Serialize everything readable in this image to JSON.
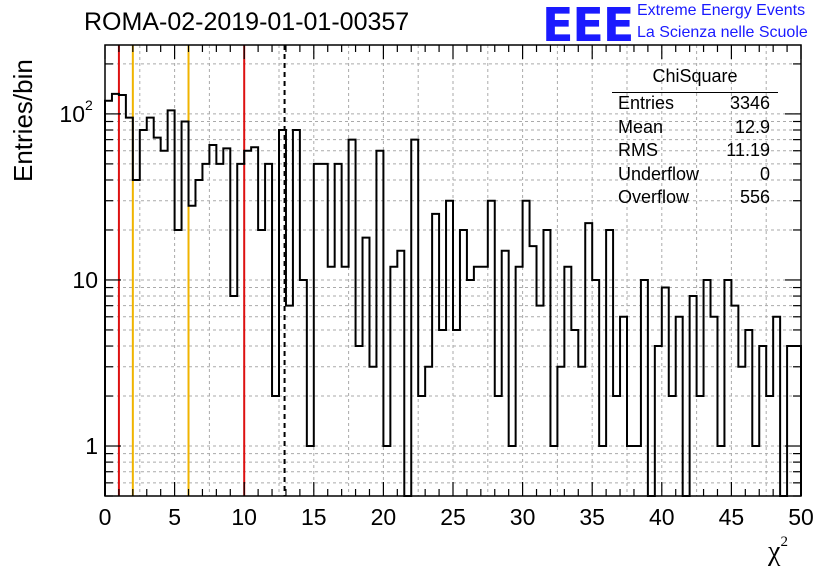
{
  "header": {
    "title": "ROMA-02-2019-01-01-00357",
    "logo_text": "EEE",
    "logo_line1": "Extreme Energy Events",
    "logo_line2": "La Scienza nelle Scuole"
  },
  "stats_box": {
    "title": "ChiSquare",
    "rows": [
      {
        "label": "Entries",
        "value": "3346"
      },
      {
        "label": "Mean",
        "value": "12.9"
      },
      {
        "label": "RMS",
        "value": "11.19"
      },
      {
        "label": "Underflow",
        "value": "0"
      },
      {
        "label": "Overflow",
        "value": "556"
      }
    ]
  },
  "colors": {
    "histogram": "#000000",
    "red_line": "#dd1111",
    "yellow_line": "#f0b400",
    "grid": "#aaaaaa",
    "logo": "#1a1aff"
  },
  "chart_data": {
    "type": "histogram",
    "title": "ROMA-02-2019-01-01-00357",
    "xlabel": "χ",
    "xlabel_sup": "2",
    "ylabel": "Entries/bin",
    "xlim": [
      0,
      50
    ],
    "ylim": [
      0.5,
      260
    ],
    "yscale": "log",
    "grid": true,
    "bin_width": 0.5,
    "x_ticks": [
      "0",
      "5",
      "10",
      "15",
      "20",
      "25",
      "30",
      "35",
      "40",
      "45",
      "50"
    ],
    "y_ticks": [
      {
        "value": 1,
        "label": "1"
      },
      {
        "value": 10,
        "label": "10"
      },
      {
        "value": 100,
        "label": "10",
        "sup": "2"
      }
    ],
    "counts": [
      120,
      132,
      130,
      95,
      40,
      80,
      95,
      72,
      60,
      105,
      20,
      90,
      28,
      40,
      50,
      65,
      50,
      62,
      8,
      50,
      60,
      63,
      20,
      50,
      2,
      80,
      7,
      80,
      10,
      1,
      50,
      50,
      12,
      50,
      12,
      70,
      4,
      18,
      3,
      60,
      1,
      12,
      15,
      0,
      70,
      2,
      3,
      25,
      5,
      30,
      5,
      20,
      10,
      12,
      12,
      30,
      2,
      15,
      1,
      12,
      30,
      16,
      7,
      20,
      1,
      3,
      12,
      5,
      3,
      22,
      10,
      1,
      20,
      2,
      6,
      1,
      1,
      10,
      0.5,
      4,
      9,
      2,
      6,
      0.4,
      8,
      2,
      10,
      6,
      1,
      10,
      7,
      3,
      5,
      1,
      4,
      2,
      6,
      0.4,
      4,
      4
    ],
    "reference_lines": [
      {
        "x": 1,
        "color": "red",
        "style": "solid"
      },
      {
        "x": 2,
        "color": "yellow",
        "style": "solid"
      },
      {
        "x": 6,
        "color": "yellow",
        "style": "solid"
      },
      {
        "x": 10,
        "color": "red",
        "style": "solid"
      },
      {
        "x": 12.9,
        "color": "black",
        "style": "dashed"
      }
    ]
  }
}
